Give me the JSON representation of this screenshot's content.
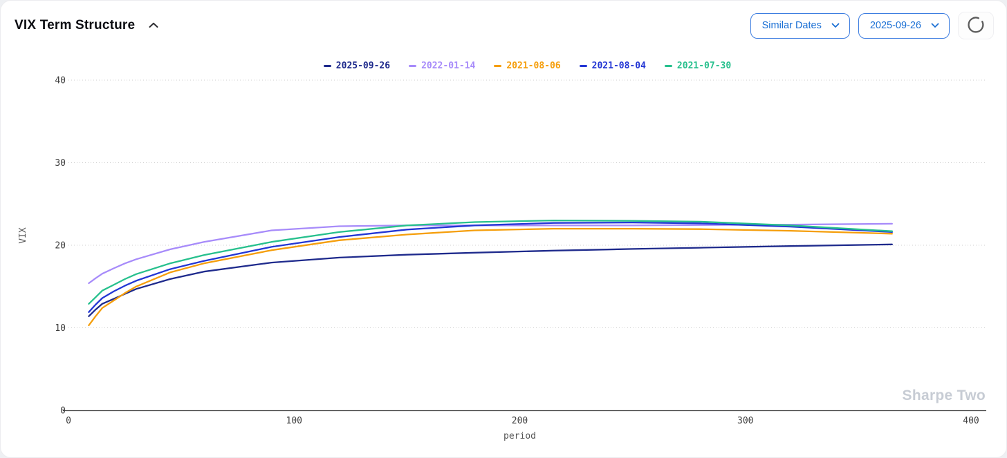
{
  "header": {
    "title": "VIX Term Structure",
    "collapse_icon": "chevron-up",
    "mode_select": {
      "value": "Similar Dates"
    },
    "date_select": {
      "value": "2025-09-26"
    },
    "loading_icon": "spinner"
  },
  "watermark": "Sharpe Two",
  "colors": {
    "accent_blue_text": "#1a6fd4",
    "accent_blue_border": "#3b7ce0",
    "axis_text": "#3d3d3d",
    "grid": "#cfcfcf",
    "axis_line": "#3a3a3a",
    "watermark": "#c7ccd4"
  },
  "chart_data": {
    "type": "line",
    "title": "",
    "xlabel": "period",
    "ylabel": "VIX",
    "xlim": [
      0,
      400
    ],
    "ylim": [
      0,
      40
    ],
    "x_ticks": [
      0,
      100,
      200,
      300,
      400
    ],
    "y_ticks": [
      0,
      10,
      20,
      30,
      40
    ],
    "grid": "horizontal-dotted",
    "legend_position": "top-center",
    "x": [
      9,
      12,
      15,
      20,
      25,
      30,
      45,
      60,
      90,
      120,
      150,
      180,
      215,
      250,
      280,
      320,
      365
    ],
    "series": [
      {
        "name": "2025-09-26",
        "color": "#1e2a8c",
        "values": [
          11.4,
          12.2,
          12.9,
          13.5,
          14.1,
          14.7,
          15.9,
          16.8,
          17.9,
          18.5,
          18.85,
          19.1,
          19.35,
          19.55,
          19.7,
          19.9,
          20.1
        ]
      },
      {
        "name": "2022-01-14",
        "color": "#a78bfa",
        "values": [
          15.4,
          16.0,
          16.55,
          17.2,
          17.8,
          18.3,
          19.5,
          20.4,
          21.8,
          22.3,
          22.4,
          22.4,
          22.4,
          22.4,
          22.45,
          22.5,
          22.6
        ]
      },
      {
        "name": "2021-08-06",
        "color": "#f59e0b",
        "values": [
          10.3,
          11.4,
          12.4,
          13.3,
          14.2,
          15.0,
          16.7,
          17.8,
          19.4,
          20.6,
          21.3,
          21.8,
          22.0,
          22.0,
          21.95,
          21.75,
          21.4
        ]
      },
      {
        "name": "2021-08-04",
        "color": "#2336d4",
        "values": [
          11.9,
          12.8,
          13.6,
          14.4,
          15.1,
          15.7,
          17.1,
          18.1,
          19.8,
          21.0,
          21.9,
          22.4,
          22.7,
          22.75,
          22.65,
          22.25,
          21.6
        ]
      },
      {
        "name": "2021-07-30",
        "color": "#27c08d",
        "values": [
          12.9,
          13.7,
          14.5,
          15.2,
          15.9,
          16.5,
          17.8,
          18.8,
          20.4,
          21.6,
          22.4,
          22.8,
          23.0,
          22.95,
          22.85,
          22.4,
          21.7
        ]
      }
    ]
  }
}
